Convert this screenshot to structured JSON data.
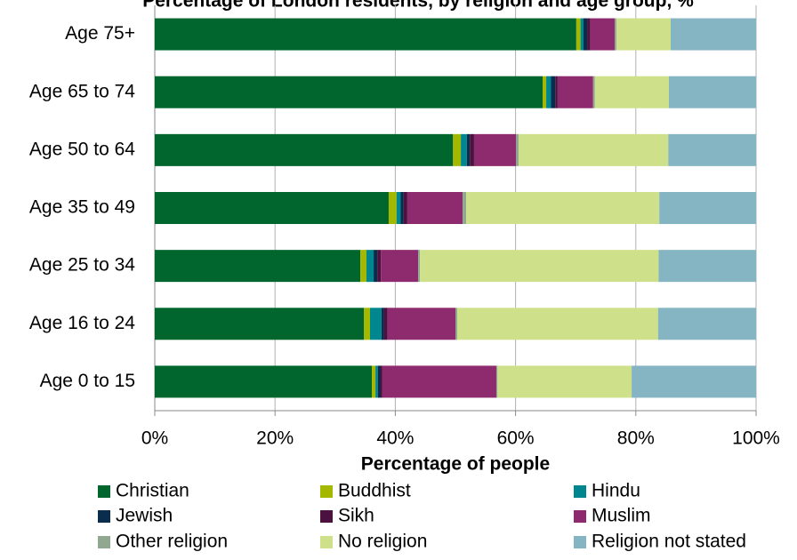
{
  "chart_data": {
    "type": "stacked-barh",
    "title": "Percentage of London residents, by religion and age group, %",
    "xlabel": "Percentage of people",
    "categories": [
      "Age 75+",
      "Age 65 to 74",
      "Age 50 to 64",
      "Age 35 to 49",
      "Age 25 to 34",
      "Age 16 to 24",
      "Age 0 to 15"
    ],
    "series": [
      {
        "name": "Christian",
        "color": "#00662e",
        "values": [
          70.1,
          64.5,
          49.6,
          38.9,
          34.2,
          34.8,
          36.1
        ]
      },
      {
        "name": "Buddhist",
        "color": "#a5b800",
        "values": [
          0.7,
          0.6,
          1.3,
          1.3,
          1.0,
          1.0,
          0.6
        ]
      },
      {
        "name": "Hindu",
        "color": "#00868f",
        "values": [
          0.5,
          0.8,
          1.0,
          0.7,
          1.2,
          1.9,
          0.4
        ]
      },
      {
        "name": "Jewish",
        "color": "#0a2d4d",
        "values": [
          0.6,
          0.7,
          0.5,
          0.5,
          0.6,
          0.4,
          0.4
        ]
      },
      {
        "name": "Sikh",
        "color": "#4b1240",
        "values": [
          0.5,
          0.4,
          0.7,
          0.6,
          0.6,
          0.6,
          0.3
        ]
      },
      {
        "name": "Muslim",
        "color": "#8e2a6e",
        "values": [
          4.1,
          5.9,
          7.0,
          9.2,
          6.2,
          11.3,
          19.0
        ]
      },
      {
        "name": "Other religion",
        "color": "#8fa88f",
        "values": [
          0.3,
          0.3,
          0.4,
          0.6,
          0.3,
          0.3,
          0.2
        ]
      },
      {
        "name": "No religion",
        "color": "#cfe08a",
        "values": [
          9.0,
          12.3,
          24.9,
          32.1,
          39.7,
          33.4,
          22.3
        ]
      },
      {
        "name": "Religion not stated",
        "color": "#85b5c2",
        "values": [
          14.2,
          14.5,
          14.6,
          16.1,
          16.2,
          16.3,
          20.7
        ]
      }
    ],
    "xlim": [
      0,
      100
    ],
    "xticks": [
      {
        "value": 0,
        "label": "0%"
      },
      {
        "value": 20,
        "label": "20%"
      },
      {
        "value": 40,
        "label": "40%"
      },
      {
        "value": 60,
        "label": "60%"
      },
      {
        "value": 80,
        "label": "80%"
      },
      {
        "value": 100,
        "label": "100%"
      }
    ],
    "grid": true,
    "legend": "bottom"
  }
}
